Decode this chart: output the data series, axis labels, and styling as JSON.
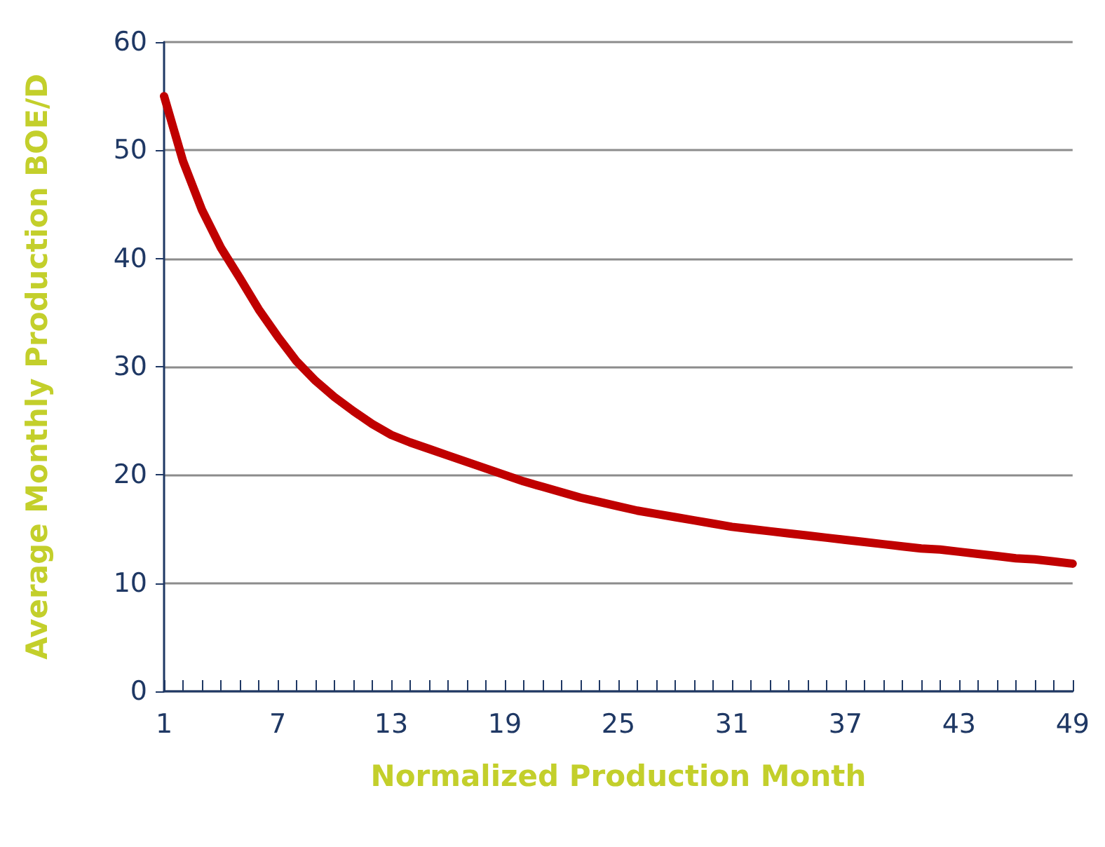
{
  "chart_data": {
    "type": "line",
    "xlabel": "Normalized Production Month",
    "ylabel": "Average Monthly Production BOE/D",
    "x": [
      1,
      2,
      3,
      4,
      5,
      6,
      7,
      8,
      9,
      10,
      11,
      12,
      13,
      14,
      15,
      16,
      17,
      18,
      19,
      20,
      21,
      22,
      23,
      24,
      25,
      26,
      27,
      28,
      29,
      30,
      31,
      32,
      33,
      34,
      35,
      36,
      37,
      38,
      39,
      40,
      41,
      42,
      43,
      44,
      45,
      46,
      47,
      48,
      49
    ],
    "series": [
      {
        "color": "#c00000",
        "values": [
          55,
          49,
          44.5,
          41,
          38.2,
          35.3,
          32.8,
          30.5,
          28.7,
          27.2,
          25.9,
          24.7,
          23.7,
          23,
          22.4,
          21.8,
          21.2,
          20.6,
          20,
          19.4,
          18.9,
          18.4,
          17.9,
          17.5,
          17.1,
          16.7,
          16.4,
          16.1,
          15.8,
          15.5,
          15.2,
          15,
          14.8,
          14.6,
          14.4,
          14.2,
          14,
          13.8,
          13.6,
          13.4,
          13.2,
          13.1,
          12.9,
          12.7,
          12.5,
          12.3,
          12.2,
          12,
          11.8
        ]
      }
    ],
    "xlim": [
      1,
      49
    ],
    "xticks": [
      1,
      {
        "value": 2,
        "label": null
      },
      {
        "value": 3,
        "label": null
      },
      {
        "value": 4,
        "label": null
      },
      {
        "value": 5,
        "label": null
      },
      {
        "value": 6,
        "label": null
      },
      7,
      {
        "value": 8,
        "label": null
      },
      {
        "value": 9,
        "label": null
      },
      {
        "value": 10,
        "label": null
      },
      {
        "value": 11,
        "label": null
      },
      {
        "value": 12,
        "label": null
      },
      13,
      {
        "value": 14,
        "label": null
      },
      {
        "value": 15,
        "label": null
      },
      {
        "value": 16,
        "label": null
      },
      {
        "value": 17,
        "label": null
      },
      {
        "value": 18,
        "label": null
      },
      19,
      {
        "value": 20,
        "label": null
      },
      {
        "value": 21,
        "label": null
      },
      {
        "value": 22,
        "label": null
      },
      {
        "value": 23,
        "label": null
      },
      {
        "value": 24,
        "label": null
      },
      25,
      {
        "value": 26,
        "label": null
      },
      {
        "value": 27,
        "label": null
      },
      {
        "value": 28,
        "label": null
      },
      {
        "value": 29,
        "label": null
      },
      {
        "value": 30,
        "label": null
      },
      31,
      {
        "value": 32,
        "label": null
      },
      {
        "value": 33,
        "label": null
      },
      {
        "value": 34,
        "label": null
      },
      {
        "value": 35,
        "label": null
      },
      {
        "value": 36,
        "label": null
      },
      37,
      {
        "value": 38,
        "label": null
      },
      {
        "value": 39,
        "label": null
      },
      {
        "value": 40,
        "label": null
      },
      {
        "value": 41,
        "label": null
      },
      {
        "value": 42,
        "label": null
      },
      43,
      {
        "value": 44,
        "label": null
      },
      {
        "value": 45,
        "label": null
      },
      {
        "value": 46,
        "label": null
      },
      {
        "value": 47,
        "label": null
      },
      {
        "value": 48,
        "label": null
      },
      49
    ],
    "ylim": [
      0,
      60
    ],
    "yticks": [
      0,
      10,
      20,
      30,
      40,
      50,
      60
    ],
    "grid": "y",
    "marker": "none",
    "line_style": "solid"
  }
}
